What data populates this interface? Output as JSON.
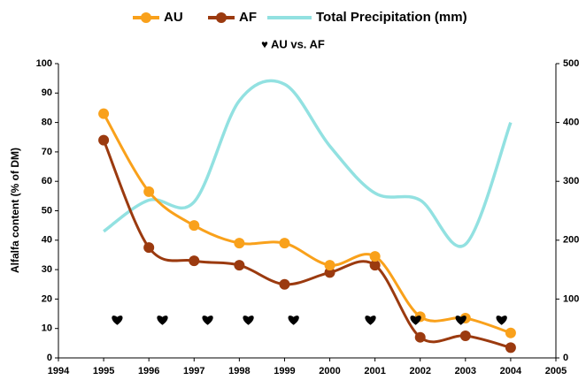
{
  "chart_data": {
    "type": "line",
    "x": [
      1995,
      1996,
      1997,
      1998,
      1999,
      2000,
      2001,
      2002,
      2003,
      2004
    ],
    "y_label": "Alfalfa content (% of DM)",
    "xlim": [
      1994,
      2005
    ],
    "xticks": [
      1994,
      1995,
      1996,
      1997,
      1998,
      1999,
      2000,
      2001,
      2002,
      2003,
      2004,
      2005
    ],
    "ylim": [
      0,
      100
    ],
    "yticks": [
      0,
      10,
      20,
      30,
      40,
      50,
      60,
      70,
      80,
      90,
      100
    ],
    "y2lim": [
      0,
      500
    ],
    "y2ticks": [
      0,
      100,
      200,
      300,
      400,
      500
    ],
    "grid": false,
    "series": [
      {
        "name": "AU",
        "color": "#f9a11b",
        "values": [
          83,
          56.5,
          45,
          39,
          39,
          31.5,
          34.5,
          14,
          13.5,
          8.5
        ]
      },
      {
        "name": "AF",
        "color": "#9b3a0f",
        "values": [
          74,
          37.5,
          33,
          31.5,
          25,
          29,
          31.5,
          7,
          7.5,
          3.5
        ]
      },
      {
        "name": "Total Precipitation (mm)",
        "color": "#92e1e1",
        "axis": "y2",
        "values": [
          215,
          268,
          265,
          437,
          465,
          360,
          280,
          268,
          193,
          400
        ]
      }
    ],
    "markers": {
      "name": "♥ AU vs. AF",
      "color": "#000000",
      "x": [
        1995.3,
        1996.3,
        1997.3,
        1998.2,
        1999.2,
        2000.9,
        2001.9,
        2002.9,
        2003.8
      ],
      "values": [
        13,
        13,
        13,
        13,
        13,
        13,
        13,
        13,
        13
      ]
    }
  }
}
